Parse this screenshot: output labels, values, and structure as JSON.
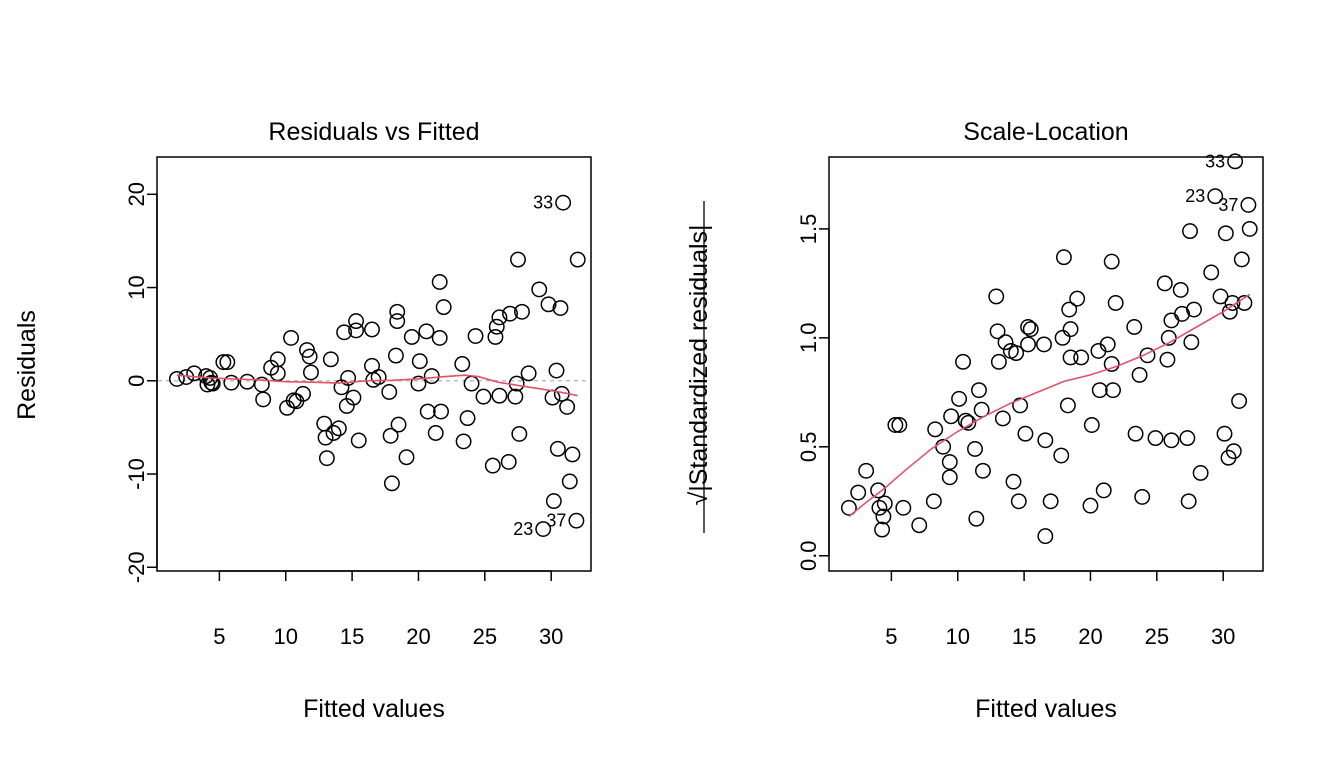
{
  "chart_data": [
    {
      "type": "scatter",
      "title": "Residuals vs Fitted",
      "xlabel": "Fitted values",
      "ylabel": "Residuals",
      "xlim": [
        0.3,
        33
      ],
      "ylim": [
        -20.4,
        24
      ],
      "xticks": [
        5,
        10,
        15,
        20,
        25,
        30
      ],
      "yticks": [
        -20,
        -10,
        0,
        10,
        20
      ],
      "ref_line_y": 0,
      "colors": {
        "points": "#000000",
        "smooth": "#DF536B",
        "reference": "#BEBEBE"
      },
      "labels": [
        {
          "text": "33",
          "x": 30.9,
          "y": 19.1,
          "side": "left"
        },
        {
          "text": "23",
          "x": 29.4,
          "y": -15.9,
          "side": "left"
        },
        {
          "text": "37",
          "x": 31.9,
          "y": -15.0,
          "side": "left"
        }
      ],
      "points": [
        [
          1.8,
          0.2
        ],
        [
          2.5,
          0.4
        ],
        [
          3.1,
          0.8
        ],
        [
          4.0,
          0.5
        ],
        [
          4.1,
          -0.4
        ],
        [
          4.3,
          0.3
        ],
        [
          4.4,
          -0.2
        ],
        [
          4.5,
          -0.3
        ],
        [
          5.3,
          2.0
        ],
        [
          5.6,
          2.0
        ],
        [
          5.9,
          -0.2
        ],
        [
          7.1,
          -0.1
        ],
        [
          8.2,
          -0.4
        ],
        [
          8.3,
          -2.0
        ],
        [
          8.9,
          1.4
        ],
        [
          9.4,
          2.3
        ],
        [
          9.4,
          0.8
        ],
        [
          10.1,
          -2.9
        ],
        [
          10.4,
          4.6
        ],
        [
          10.6,
          -2.1
        ],
        [
          10.8,
          -2.2
        ],
        [
          11.3,
          -1.4
        ],
        [
          11.6,
          3.3
        ],
        [
          11.8,
          2.6
        ],
        [
          11.9,
          0.9
        ],
        [
          12.9,
          -4.6
        ],
        [
          13.0,
          -6.1
        ],
        [
          13.1,
          -8.3
        ],
        [
          13.4,
          2.3
        ],
        [
          13.6,
          -5.6
        ],
        [
          14.0,
          -5.1
        ],
        [
          14.2,
          -0.7
        ],
        [
          14.4,
          5.2
        ],
        [
          14.6,
          -2.7
        ],
        [
          14.7,
          0.3
        ],
        [
          15.1,
          -1.8
        ],
        [
          15.3,
          6.4
        ],
        [
          15.3,
          5.4
        ],
        [
          15.5,
          -6.4
        ],
        [
          16.5,
          5.5
        ],
        [
          16.5,
          1.6
        ],
        [
          16.6,
          0.1
        ],
        [
          17.0,
          0.4
        ],
        [
          17.8,
          -1.2
        ],
        [
          17.9,
          -5.9
        ],
        [
          18.0,
          -11.0
        ],
        [
          18.3,
          2.7
        ],
        [
          18.4,
          7.4
        ],
        [
          18.4,
          6.4
        ],
        [
          18.5,
          -4.7
        ],
        [
          19.1,
          -8.2
        ],
        [
          19.5,
          4.7
        ],
        [
          20.0,
          -0.3
        ],
        [
          20.1,
          2.1
        ],
        [
          20.6,
          5.3
        ],
        [
          20.7,
          -3.3
        ],
        [
          21.0,
          0.5
        ],
        [
          21.3,
          -5.6
        ],
        [
          21.6,
          10.6
        ],
        [
          21.6,
          4.6
        ],
        [
          21.7,
          -3.3
        ],
        [
          21.9,
          7.9
        ],
        [
          23.3,
          1.8
        ],
        [
          23.4,
          -6.5
        ],
        [
          23.7,
          -4.0
        ],
        [
          24.0,
          -0.3
        ],
        [
          24.3,
          4.8
        ],
        [
          24.9,
          -1.7
        ],
        [
          25.6,
          -9.1
        ],
        [
          25.8,
          4.7
        ],
        [
          25.9,
          5.8
        ],
        [
          26.1,
          6.8
        ],
        [
          26.1,
          -1.6
        ],
        [
          26.8,
          -8.7
        ],
        [
          26.9,
          7.2
        ],
        [
          27.3,
          -1.7
        ],
        [
          27.4,
          -0.3
        ],
        [
          27.5,
          13.0
        ],
        [
          27.6,
          -5.7
        ],
        [
          27.8,
          7.4
        ],
        [
          28.3,
          0.8
        ],
        [
          29.1,
          9.8
        ],
        [
          29.4,
          -15.9
        ],
        [
          29.8,
          8.2
        ],
        [
          30.1,
          -1.8
        ],
        [
          30.2,
          -12.9
        ],
        [
          30.4,
          1.1
        ],
        [
          30.5,
          -7.3
        ],
        [
          30.7,
          7.8
        ],
        [
          30.8,
          -1.4
        ],
        [
          30.9,
          19.1
        ],
        [
          31.2,
          -2.8
        ],
        [
          31.4,
          -10.8
        ],
        [
          31.6,
          -7.9
        ],
        [
          31.9,
          -15.0
        ],
        [
          32.0,
          13.0
        ]
      ],
      "smooth": [
        [
          1.8,
          0.6
        ],
        [
          3,
          0.45
        ],
        [
          4.5,
          0.3
        ],
        [
          6,
          0.2
        ],
        [
          8,
          0.1
        ],
        [
          10,
          -0.1
        ],
        [
          12,
          -0.15
        ],
        [
          14,
          -0.25
        ],
        [
          15,
          -0.15
        ],
        [
          16,
          0.0
        ],
        [
          18,
          0.05
        ],
        [
          20,
          0.2
        ],
        [
          22,
          0.45
        ],
        [
          23.5,
          0.6
        ],
        [
          24.5,
          0.45
        ],
        [
          26,
          -0.15
        ],
        [
          28,
          -0.6
        ],
        [
          30,
          -1.05
        ],
        [
          31.2,
          -1.35
        ],
        [
          32,
          -1.6
        ]
      ]
    },
    {
      "type": "scatter",
      "title": "Scale-Location",
      "xlabel": "Fitted values",
      "ylabel_radical": "√",
      "ylabel": "|Standardized residuals|",
      "xlim": [
        0.3,
        33
      ],
      "ylim": [
        -0.07,
        1.83
      ],
      "xticks": [
        5,
        10,
        15,
        20,
        25,
        30
      ],
      "yticks": [
        0.0,
        0.5,
        1.0,
        1.5
      ],
      "ytick_labels": [
        "0.0",
        "0.5",
        "1.0",
        "1.5"
      ],
      "colors": {
        "points": "#000000",
        "smooth": "#DF536B"
      },
      "labels": [
        {
          "text": "33",
          "x": 30.9,
          "y": 1.81,
          "side": "left"
        },
        {
          "text": "23",
          "x": 29.4,
          "y": 1.65,
          "side": "left"
        },
        {
          "text": "37",
          "x": 31.9,
          "y": 1.61,
          "side": "left"
        }
      ],
      "points": [
        [
          1.8,
          0.22
        ],
        [
          2.5,
          0.29
        ],
        [
          3.1,
          0.39
        ],
        [
          4.0,
          0.3
        ],
        [
          4.1,
          0.22
        ],
        [
          4.3,
          0.12
        ],
        [
          4.4,
          0.18
        ],
        [
          4.5,
          0.24
        ],
        [
          5.3,
          0.6
        ],
        [
          5.6,
          0.6
        ],
        [
          5.9,
          0.22
        ],
        [
          7.1,
          0.14
        ],
        [
          8.2,
          0.25
        ],
        [
          8.3,
          0.58
        ],
        [
          8.9,
          0.5
        ],
        [
          9.4,
          0.36
        ],
        [
          9.4,
          0.43
        ],
        [
          9.5,
          0.64
        ],
        [
          10.1,
          0.72
        ],
        [
          10.4,
          0.89
        ],
        [
          10.6,
          0.62
        ],
        [
          10.8,
          0.61
        ],
        [
          11.3,
          0.49
        ],
        [
          11.4,
          0.17
        ],
        [
          11.6,
          0.76
        ],
        [
          11.8,
          0.67
        ],
        [
          11.9,
          0.39
        ],
        [
          12.9,
          1.19
        ],
        [
          13.0,
          1.03
        ],
        [
          13.1,
          0.89
        ],
        [
          13.4,
          0.63
        ],
        [
          13.6,
          0.98
        ],
        [
          14.0,
          0.94
        ],
        [
          14.2,
          0.34
        ],
        [
          14.4,
          0.93
        ],
        [
          14.6,
          0.25
        ],
        [
          14.7,
          0.69
        ],
        [
          15.1,
          0.56
        ],
        [
          15.3,
          1.05
        ],
        [
          15.3,
          0.97
        ],
        [
          15.5,
          1.04
        ],
        [
          16.5,
          0.97
        ],
        [
          16.6,
          0.53
        ],
        [
          16.6,
          0.09
        ],
        [
          17.0,
          0.25
        ],
        [
          17.8,
          0.46
        ],
        [
          17.9,
          1.0
        ],
        [
          18.0,
          1.37
        ],
        [
          18.3,
          0.69
        ],
        [
          18.4,
          1.13
        ],
        [
          18.5,
          0.91
        ],
        [
          18.5,
          1.04
        ],
        [
          19.0,
          1.18
        ],
        [
          19.3,
          0.91
        ],
        [
          20.0,
          0.23
        ],
        [
          20.1,
          0.6
        ],
        [
          20.6,
          0.94
        ],
        [
          20.7,
          0.76
        ],
        [
          21.0,
          0.3
        ],
        [
          21.3,
          0.97
        ],
        [
          21.6,
          0.88
        ],
        [
          21.6,
          1.35
        ],
        [
          21.7,
          0.76
        ],
        [
          21.9,
          1.16
        ],
        [
          23.3,
          1.05
        ],
        [
          23.4,
          0.56
        ],
        [
          23.7,
          0.83
        ],
        [
          23.9,
          0.27
        ],
        [
          24.3,
          0.92
        ],
        [
          24.9,
          0.54
        ],
        [
          25.6,
          1.25
        ],
        [
          25.8,
          0.9
        ],
        [
          25.9,
          1.0
        ],
        [
          26.1,
          1.08
        ],
        [
          26.1,
          0.53
        ],
        [
          26.8,
          1.22
        ],
        [
          26.9,
          1.11
        ],
        [
          27.3,
          0.54
        ],
        [
          27.4,
          0.25
        ],
        [
          27.5,
          1.49
        ],
        [
          27.6,
          0.98
        ],
        [
          27.8,
          1.13
        ],
        [
          28.3,
          0.38
        ],
        [
          29.1,
          1.3
        ],
        [
          29.4,
          1.65
        ],
        [
          29.8,
          1.19
        ],
        [
          30.1,
          0.56
        ],
        [
          30.2,
          1.48
        ],
        [
          30.4,
          0.45
        ],
        [
          30.5,
          1.12
        ],
        [
          30.7,
          1.16
        ],
        [
          30.8,
          0.48
        ],
        [
          30.9,
          1.81
        ],
        [
          31.2,
          0.71
        ],
        [
          31.4,
          1.36
        ],
        [
          31.6,
          1.16
        ],
        [
          31.9,
          1.61
        ],
        [
          32.0,
          1.5
        ]
      ],
      "smooth": [
        [
          1.8,
          0.18
        ],
        [
          3,
          0.24
        ],
        [
          4.5,
          0.31
        ],
        [
          6,
          0.39
        ],
        [
          8,
          0.49
        ],
        [
          10,
          0.57
        ],
        [
          12,
          0.64
        ],
        [
          14,
          0.7
        ],
        [
          16,
          0.75
        ],
        [
          18,
          0.8
        ],
        [
          20,
          0.83
        ],
        [
          22,
          0.87
        ],
        [
          24,
          0.92
        ],
        [
          26,
          0.98
        ],
        [
          28,
          1.05
        ],
        [
          30,
          1.12
        ],
        [
          32,
          1.2
        ]
      ]
    }
  ]
}
